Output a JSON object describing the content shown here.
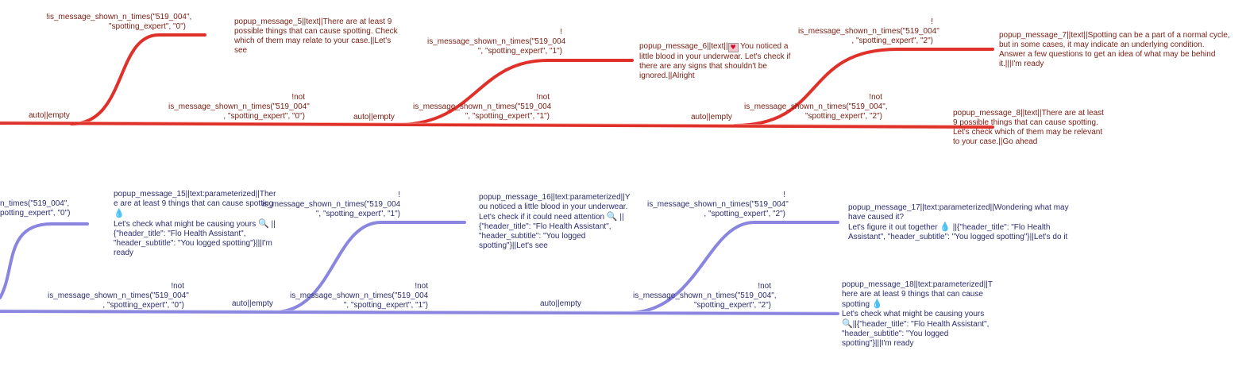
{
  "colors": {
    "red_track": "#e0302a",
    "blue_track": "#8a86e0",
    "red_text": "#7a1d12",
    "blue_text": "#2b2d6e"
  },
  "red_flow": {
    "auto_labels": [
      "auto||empty",
      "auto||empty",
      "auto||empty"
    ],
    "top_conditions": [
      [
        "!is_message_shown_n_times(\"519_004\",",
        "\"spotting_expert\", \"0\")"
      ],
      [
        "!",
        "is_message_shown_n_times(\"519_004",
        "\", \"spotting_expert\", \"1\")"
      ],
      [
        "!",
        "is_message_shown_n_times(\"519_004\"",
        ", \"spotting_expert\", \"2\")"
      ]
    ],
    "bottom_conditions": [
      [
        "!not",
        "is_message_shown_n_times(\"519_004\"",
        ", \"spotting_expert\", \"0\")"
      ],
      [
        "!not",
        "is_message_shown_n_times(\"519_004",
        "\", \"spotting_expert\", \"1\")"
      ],
      [
        "!not",
        "is_message_shown_n_times(\"519_004\",",
        "\"spotting_expert\", \"2\")"
      ]
    ],
    "popups": [
      [
        "popup_message_5||text||There are at least 9",
        "possible things that can cause spotting. Check",
        "which of them may relate to your case.||Let's",
        "see"
      ],
      [
        "popup_message_6||text||",
        "little blood in your underwear. Let's check if",
        "there are any signs that shouldn't be",
        "ignored.||Alright"
      ],
      [
        "popup_message_7||text||Spotting can be a part of a normal cycle,",
        "but in some cases, it may indicate an underlying condition.",
        "Answer a few questions to get an idea of what may be behind",
        "it.|||I'm ready"
      ],
      [
        "popup_message_8||text||There are at least",
        "9 possible things that can cause spotting.",
        "Let's check which of them may be relevant",
        "to your case.||Go ahead"
      ]
    ],
    "popup6_rest": " You noticed a"
  },
  "blue_flow": {
    "auto_labels": [
      "auto||empty",
      "auto||empty"
    ],
    "top_conditions": [
      [
        "n_times(\"519_004\",",
        "potting_expert\", \"0\")"
      ],
      [
        "!",
        "is_message_shown_n_times(\"519_004",
        "\", \"spotting_expert\", \"1\")"
      ],
      [
        "!",
        "is_message_shown_n_times(\"519_004\"",
        ", \"spotting_expert\", \"2\")"
      ]
    ],
    "bottom_conditions": [
      [
        "!not",
        "is_message_shown_n_times(\"519_004\"",
        ", \"spotting_expert\", \"0\")"
      ],
      [
        "!not",
        "is_message_shown_n_times(\"519_004",
        "\", \"spotting_expert\", \"1\")"
      ],
      [
        "!not",
        "is_message_shown_n_times(\"519_004\",",
        "\"spotting_expert\", \"2\")"
      ]
    ],
    "popups": [
      [
        "popup_message_15||text:parameterized||Ther",
        "e are at least 9 things that can cause spotting",
        "",
        "Let's check what might be causing yours",
        "{\"header_title\": \"Flo Health Assistant\",",
        "\"header_subtitle\": \"You logged spotting\"}|||I'm",
        "ready"
      ],
      [
        "popup_message_16||text:parameterized||Y",
        "ou noticed a little blood in your underwear.",
        "Let's check if it could need attention",
        "{\"header_title\": \"Flo Health Assistant\",",
        "\"header_subtitle\": \"You logged",
        "spotting\"}||Let's see"
      ],
      [
        "popup_message_17||text:parameterized||Wondering what may",
        "have caused it?",
        "Let's figure it out together",
        "Assistant\", \"header_subtitle\": \"You logged spotting\"}||Let's do it"
      ],
      [
        "popup_message_18||text:parameterized||T",
        "here are at least 9 things that can cause",
        "spotting",
        "Let's check what might be causing yours",
        "||{\"header_title\": \"Flo Health Assistant\",",
        "\"header_subtitle\": \"You logged",
        "spotting\"}|||I'm ready"
      ]
    ],
    "popup17_line3_tail": " ||{\"header_title\": \"Flo Health",
    "popup15_line4_tail": " ||",
    "popup16_line3_tail": " ||"
  },
  "icons": {
    "blood_drop": "blood-drop-icon",
    "magnifier": "magnifier-icon",
    "heart_card": "heart-card-icon"
  }
}
